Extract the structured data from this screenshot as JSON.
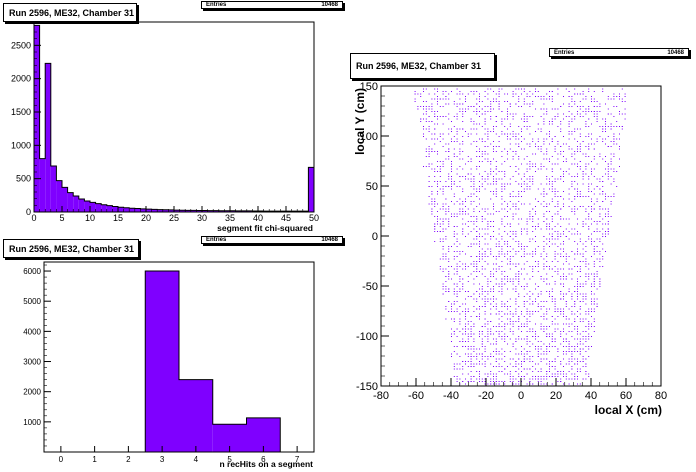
{
  "panels": {
    "chi2": {
      "title": "Run 2596, ME32, Chamber 31",
      "stats_label": "Entries",
      "stats_value": "10468"
    },
    "nhits": {
      "title": "Run 2596, ME32, Chamber 31",
      "stats_label": "Entries",
      "stats_value": "10468"
    },
    "xy": {
      "title": "Run 2596, ME32, Chamber 31",
      "stats_label": "Entries",
      "stats_value": "10468"
    }
  },
  "colors": {
    "fill": "#7f00ff",
    "edge": "#000000",
    "point": "#7f00ff"
  },
  "chart_data": [
    {
      "id": "chi2",
      "type": "bar",
      "title": "Run 2596, ME32, Chamber 31",
      "xlabel": "segment fit chi-squared",
      "ylabel": "",
      "xlim": [
        0,
        50
      ],
      "ylim": [
        0,
        2850
      ],
      "xticks": [
        0,
        5,
        10,
        15,
        20,
        25,
        30,
        35,
        40,
        45,
        50
      ],
      "yticks": [
        0,
        500,
        1000,
        1500,
        2000,
        2500
      ],
      "bin_edges": [
        0,
        1,
        2,
        3,
        4,
        5,
        6,
        7,
        8,
        9,
        10,
        11,
        12,
        13,
        14,
        15,
        16,
        17,
        18,
        19,
        20,
        21,
        22,
        23,
        24,
        25,
        26,
        27,
        28,
        29,
        30,
        31,
        32,
        33,
        34,
        35,
        36,
        37,
        38,
        39,
        40,
        41,
        42,
        43,
        44,
        45,
        46,
        47,
        48,
        49,
        50
      ],
      "values": [
        2800,
        800,
        2230,
        690,
        470,
        370,
        290,
        240,
        195,
        165,
        145,
        125,
        108,
        95,
        83,
        72,
        63,
        57,
        52,
        47,
        43,
        40,
        36,
        33,
        31,
        29,
        27,
        25,
        24,
        23,
        22,
        21,
        20,
        19,
        18,
        18,
        17,
        16,
        16,
        15,
        15,
        14,
        14,
        14,
        13,
        13,
        13,
        13,
        13,
        670
      ]
    },
    {
      "id": "nhits",
      "type": "bar",
      "title": "Run 2596, ME32, Chamber 31",
      "xlabel": "n recHits on a segment",
      "ylabel": "",
      "xlim": [
        -0.5,
        7.5
      ],
      "ylim": [
        0,
        6300
      ],
      "xticks": [
        0,
        1,
        2,
        3,
        4,
        5,
        6,
        7
      ],
      "yticks": [
        1000,
        2000,
        3000,
        4000,
        5000,
        6000
      ],
      "bin_edges": [
        2.5,
        3.5,
        4.5,
        5.5,
        6.5
      ],
      "values": [
        6000,
        2400,
        920,
        1130
      ]
    },
    {
      "id": "xy",
      "type": "scatter",
      "title": "Run 2596, ME32, Chamber 31",
      "xlabel": "local X (cm)",
      "ylabel": "local Y (cm)",
      "xlim": [
        -80,
        80
      ],
      "ylim": [
        -150,
        150
      ],
      "xticks": [
        -80,
        -60,
        -40,
        -20,
        0,
        20,
        40,
        60,
        80
      ],
      "yticks": [
        -150,
        -100,
        -50,
        0,
        50,
        100,
        150
      ],
      "trapezoid": {
        "y_min": -150,
        "y_max": 150,
        "half_width_at_y_min": 37,
        "half_width_at_y_max": 62
      },
      "n_points": 10468
    }
  ]
}
